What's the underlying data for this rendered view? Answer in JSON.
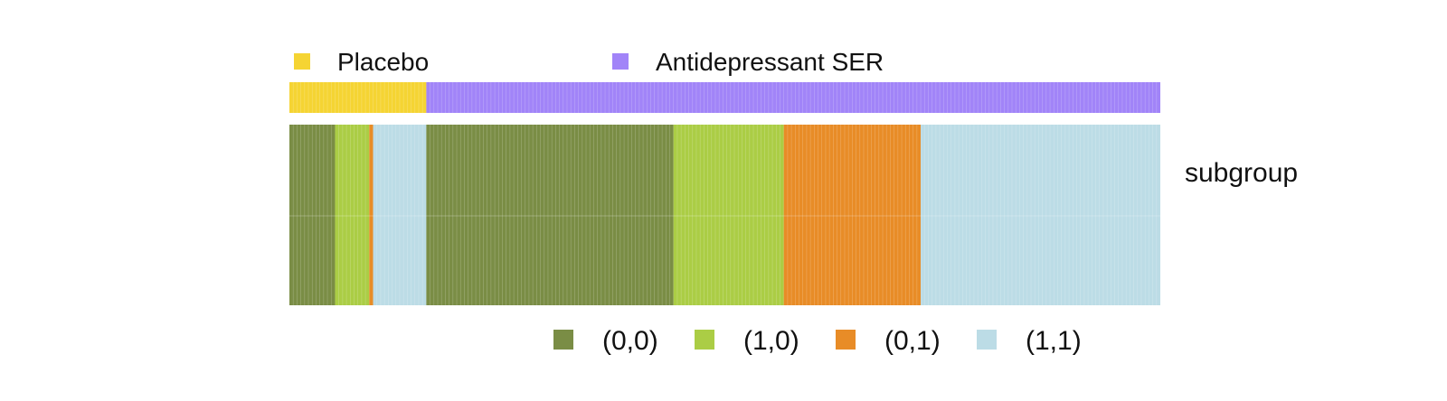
{
  "chart_data": {
    "type": "heatmap",
    "n_observations": 229,
    "treatment_track": {
      "legend": [
        {
          "label": "Placebo",
          "color": "#F5D433"
        },
        {
          "label": "Antidepressant SER",
          "color": "#A184F8"
        }
      ],
      "segments": [
        {
          "category": "Placebo",
          "count": 36
        },
        {
          "category": "Antidepressant SER",
          "count": 193
        }
      ]
    },
    "subgroup_track": {
      "label": "subgroup",
      "legend": [
        {
          "label": "(0,0)",
          "color": "#7A8D45"
        },
        {
          "label": "(1,0)",
          "color": "#ABCD45"
        },
        {
          "label": "(0,1)",
          "color": "#E88C27"
        },
        {
          "label": "(1,1)",
          "color": "#BCDCE6"
        }
      ],
      "segments": [
        {
          "category": "(0,0)",
          "count": 12
        },
        {
          "category": "(1,0)",
          "count": 9
        },
        {
          "category": "(0,1)",
          "count": 1
        },
        {
          "category": "(1,1)",
          "count": 14
        },
        {
          "category": "(0,0)",
          "count": 65
        },
        {
          "category": "(1,0)",
          "count": 29
        },
        {
          "category": "(0,1)",
          "count": 36
        },
        {
          "category": "(1,1)",
          "count": 63
        }
      ]
    }
  }
}
